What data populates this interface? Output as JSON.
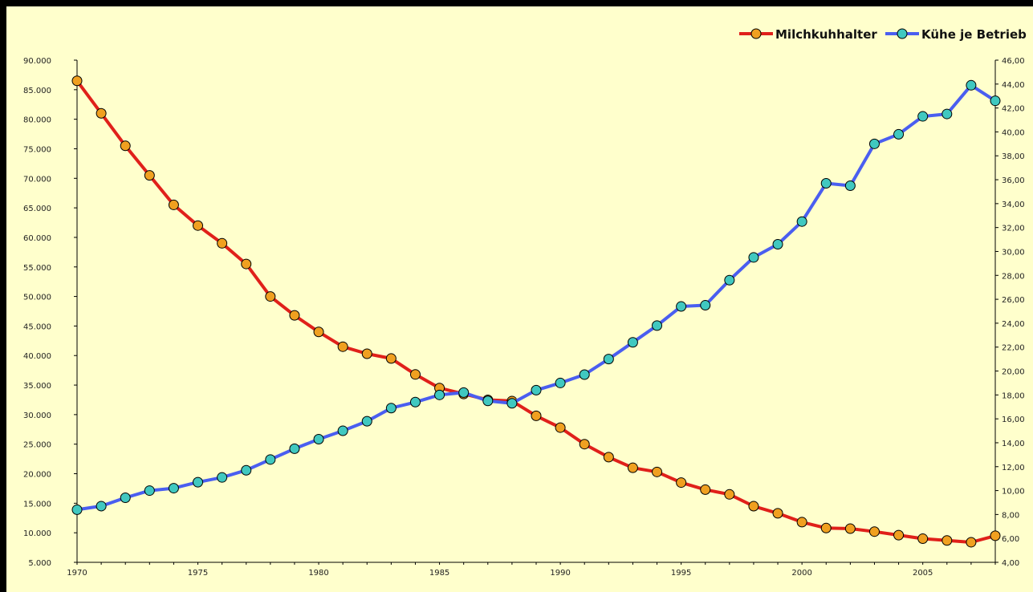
{
  "chart_data": {
    "type": "line",
    "title": "",
    "xlabel": "",
    "ylabel_left": "",
    "ylabel_right": "",
    "x": [
      1970,
      1971,
      1972,
      1973,
      1974,
      1975,
      1976,
      1977,
      1978,
      1979,
      1980,
      1981,
      1982,
      1983,
      1984,
      1985,
      1986,
      1987,
      1988,
      1989,
      1990,
      1991,
      1992,
      1993,
      1994,
      1995,
      1996,
      1997,
      1998,
      1999,
      2000,
      2001,
      2002,
      2003,
      2004,
      2005,
      2006,
      2007,
      2008
    ],
    "xlim": [
      1970,
      2008
    ],
    "x_ticks": [
      1970,
      1975,
      1980,
      1985,
      1990,
      1995,
      2000,
      2005
    ],
    "ylim_left": [
      5000,
      90000
    ],
    "ylim_right": [
      4,
      46
    ],
    "left_ticks": [
      "5.000",
      "10.000",
      "15.000",
      "20.000",
      "25.000",
      "30.000",
      "35.000",
      "40.000",
      "45.000",
      "50.000",
      "55.000",
      "60.000",
      "65.000",
      "70.000",
      "75.000",
      "80.000",
      "85.000",
      "90.000"
    ],
    "right_ticks": [
      "4,00",
      "6,00",
      "8,00",
      "10,00",
      "12,00",
      "14,00",
      "16,00",
      "18,00",
      "20,00",
      "22,00",
      "24,00",
      "26,00",
      "28,00",
      "30,00",
      "32,00",
      "34,00",
      "36,00",
      "38,00",
      "40,00",
      "42,00",
      "44,00",
      "46,00"
    ],
    "legend_position": "top-right",
    "grid": false,
    "series": [
      {
        "name": "Milchkuhhalter",
        "axis": "left",
        "color": "#e0201a",
        "marker_color": "#f0a020",
        "values": [
          86500,
          81000,
          75500,
          70500,
          65500,
          62000,
          59000,
          55500,
          50000,
          46800,
          44000,
          41500,
          40300,
          39500,
          36800,
          34500,
          33500,
          32500,
          32300,
          29800,
          27800,
          25000,
          22800,
          21000,
          20300,
          18500,
          17300,
          16500,
          14500,
          13300,
          11800,
          10800,
          10700,
          10200,
          9600,
          9000,
          8700,
          8400,
          9500
        ]
      },
      {
        "name": "Kühe je Betrieb",
        "axis": "right",
        "color": "#4a5ef0",
        "marker_color": "#40c8c0",
        "values": [
          8.4,
          8.7,
          9.4,
          10.0,
          10.2,
          10.7,
          11.1,
          11.7,
          12.6,
          13.5,
          14.3,
          15.0,
          15.8,
          16.9,
          17.4,
          18.0,
          18.2,
          17.5,
          17.3,
          18.4,
          19.0,
          19.7,
          21.0,
          22.4,
          23.8,
          25.4,
          25.5,
          27.6,
          29.5,
          30.6,
          32.5,
          35.7,
          35.5,
          39.0,
          39.8,
          41.3,
          41.5,
          43.9,
          42.6
        ]
      }
    ]
  }
}
